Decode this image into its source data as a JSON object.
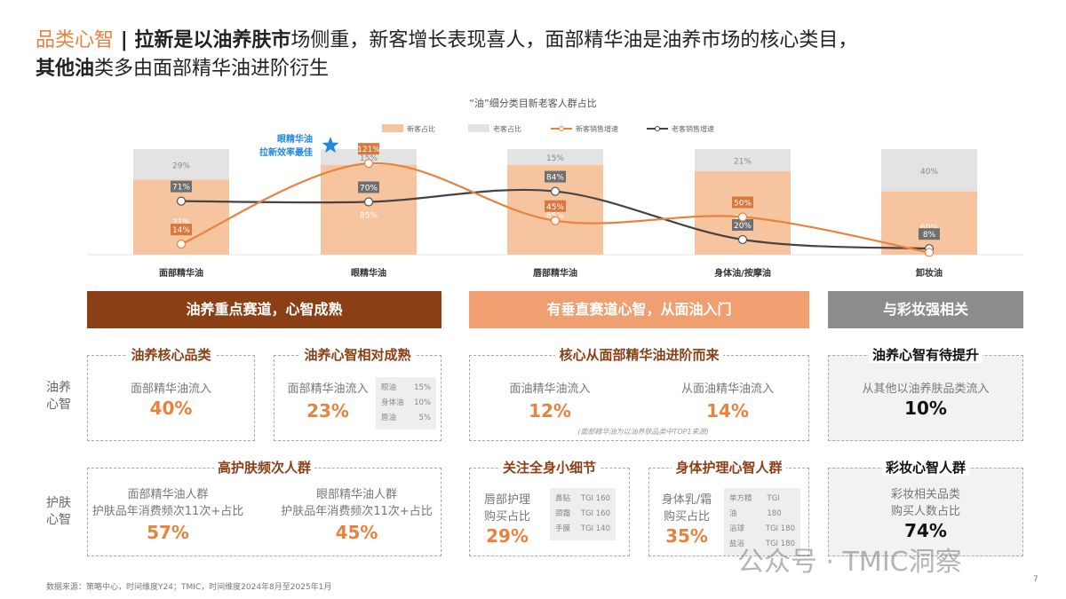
{
  "header": {
    "tag": "品类心智",
    "separator": "|",
    "bold1": "拉新是以油养肤市",
    "rest1": "场侧重，新客增长表现喜人，面部精华油是油养市场的核心类目，",
    "bold2": "其他油",
    "rest2": "类多由面部精华油进阶衍生"
  },
  "chart_data": {
    "type": "bar+line",
    "title": "“油”细分类目新老客人群占比",
    "categories": [
      "面部精华油",
      "眼精华油",
      "唇部精华油",
      "身体油/按摩油",
      "卸妆油"
    ],
    "series": [
      {
        "name": "新客占比",
        "type": "stacked-bar",
        "values": [
          71,
          85,
          85,
          79,
          60
        ],
        "color": "#F7C4A0"
      },
      {
        "name": "老客占比",
        "type": "stacked-bar",
        "values": [
          29,
          15,
          15,
          21,
          40
        ],
        "color": "#E3E3E3"
      },
      {
        "name": "新客销售增速",
        "type": "line",
        "values": [
          14,
          121,
          45,
          50,
          3
        ],
        "labels": [
          "14%",
          "121%",
          "45%",
          "50%",
          null
        ],
        "color": "#E8823E"
      },
      {
        "name": "老客销售增速",
        "type": "line",
        "values": [
          71,
          70,
          84,
          20,
          8
        ],
        "labels": [
          "71%",
          "70%",
          "84%",
          "20%",
          "8%"
        ],
        "color": "#444444"
      }
    ],
    "annotation": {
      "line1": "眼精华油",
      "line2": "拉新效率最佳",
      "icon": "star-icon",
      "color": "#1E88E5"
    },
    "legend_position": "top-right"
  },
  "bands": [
    {
      "label": "油养重点赛道，心智成熟",
      "color": "#8B3F14"
    },
    {
      "label": "有垂直赛道心智，从面油入门",
      "color": "#F0A070"
    },
    {
      "label": "与彩妆强相关",
      "color": "#8C8C8C"
    }
  ],
  "row_labels": [
    "油养心智",
    "护肤心智"
  ],
  "boxes": {
    "core": {
      "title": "油养核心品类",
      "label": "面部精华油流入",
      "value": "40%"
    },
    "mature": {
      "title": "油养心智相对成熟",
      "label": "面部精华油流入",
      "value": "23%",
      "detail": [
        {
          "k": "眼油",
          "v": "15%"
        },
        {
          "k": "身体油",
          "v": "10%"
        },
        {
          "k": "唇油",
          "v": "5%"
        }
      ]
    },
    "advance": {
      "title": "核心从面部精华油进阶而来",
      "left_label": "面油精华油流入",
      "left_value": "12%",
      "right_label": "从面油精华油流入",
      "right_value": "14%",
      "note": "(面部精华油为以油养肤品类中TOP1来源)"
    },
    "improve": {
      "title": "油养心智有待提升",
      "label": "从其他以油养肤品类流入",
      "value": "10%"
    },
    "freq": {
      "title": "高护肤频次人群",
      "left_l1": "面部精华油人群",
      "left_l2": "护肤品年消费频次11次+占比",
      "left_value": "57%",
      "right_l1": "眼部精华油人群",
      "right_l2": "护肤品年消费频次11次+占比",
      "right_value": "45%"
    },
    "detail": {
      "title": "关注全身小细节",
      "l1": "唇部护理",
      "l2": "购买占比",
      "value": "29%",
      "detail": [
        {
          "k": "鼻贴",
          "v": "TGI 160"
        },
        {
          "k": "颈霜",
          "v": "TGI 160"
        },
        {
          "k": "手膜",
          "v": "TGI 140"
        }
      ]
    },
    "body": {
      "title": "身体护理心智人群",
      "l1": "身体乳/霜",
      "l2": "购买占比",
      "value": "35%",
      "detail": [
        {
          "k": "单方精油",
          "v": "TGI 180"
        },
        {
          "k": "浴球",
          "v": "TGI 180"
        },
        {
          "k": "盐浴",
          "v": "TGI 180"
        }
      ]
    },
    "makeup": {
      "title": "彩妆心智人群",
      "l1": "彩妆相关品类",
      "l2": "购买人数占比",
      "value": "74%"
    }
  },
  "footer": {
    "source": "数据来源：策略中心，时间维度Y24；TMIC，时间维度2024年8月至2025年1月",
    "page": "7",
    "watermark": "公众号 · TMIC洞察"
  }
}
